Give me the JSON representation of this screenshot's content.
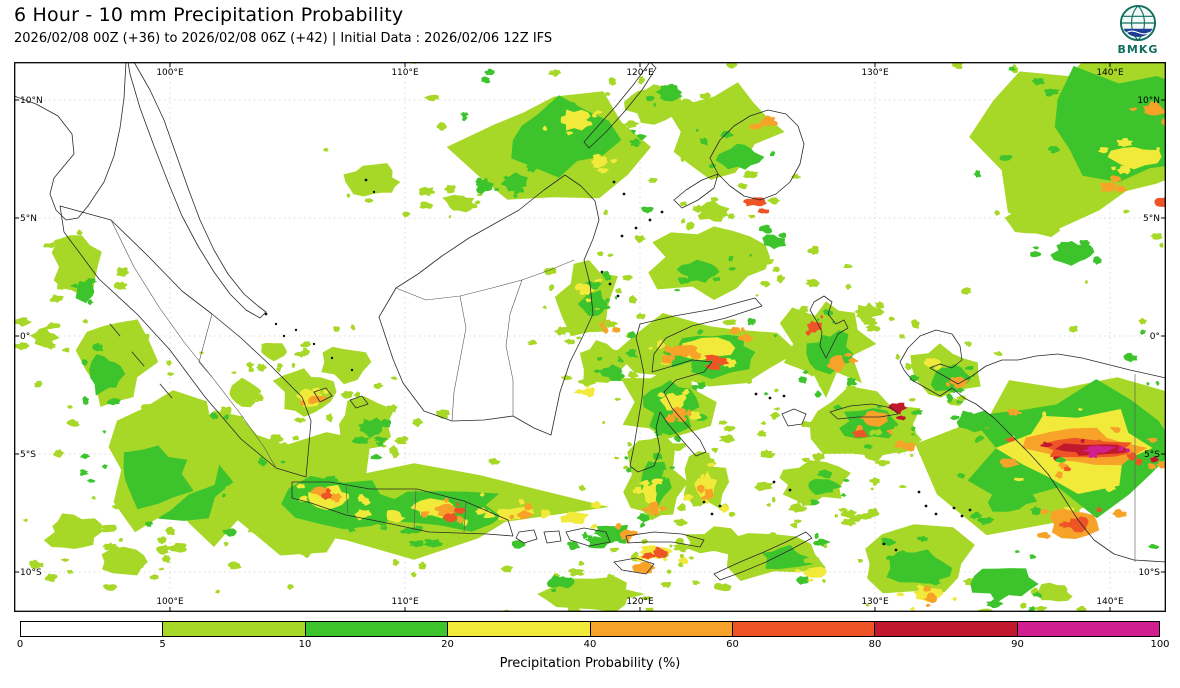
{
  "header": {
    "title": "6 Hour - 10 mm Precipitation Probability",
    "subtitle": "2026/02/08 00Z (+36) to 2026/02/08 06Z (+42) | Initial Data : 2026/02/06 12Z IFS",
    "logo_text": "BMKG"
  },
  "colors": {
    "logo_green": "#0f6e5e",
    "logo_blue": "#1c3e94"
  },
  "map": {
    "lon_labels": [
      "100°E",
      "110°E",
      "120°E",
      "130°E",
      "140°E"
    ],
    "lat_labels": [
      "10°N",
      "5°N",
      "0°",
      "5°S",
      "10°S"
    ],
    "lon_x": [
      156,
      391,
      626,
      861,
      1096
    ],
    "lat_y": [
      38,
      156,
      274,
      392,
      510
    ]
  },
  "colorbar": {
    "title": "Precipitation Probability (%)",
    "ticks": [
      "0",
      "5",
      "10",
      "20",
      "40",
      "60",
      "80",
      "90",
      "100"
    ],
    "segment_colors": [
      "#ffffff",
      "#a8d827",
      "#3dc42d",
      "#f2ea3a",
      "#f7a32a",
      "#ee5426",
      "#c2182e",
      "#d11f8f"
    ]
  },
  "palette": {
    "L1": "#a8d827",
    "L2": "#3dc42d",
    "L3": "#f2ea3a",
    "L4": "#f7a32a",
    "L5": "#ee5426",
    "L6": "#c2182e",
    "L7": "#d11f8f"
  },
  "precip_regions": {
    "fields": [
      "cx",
      "cy",
      "rx",
      "ry",
      "level",
      "specks"
    ],
    "rows": [
      [
        540,
        85,
        95,
        62,
        1,
        20
      ],
      [
        545,
        78,
        60,
        40,
        2,
        12
      ],
      [
        560,
        58,
        18,
        10,
        3,
        5
      ],
      [
        500,
        120,
        14,
        9,
        2,
        4
      ],
      [
        585,
        100,
        10,
        6,
        3,
        3
      ],
      [
        445,
        140,
        16,
        10,
        1,
        5
      ],
      [
        470,
        125,
        10,
        7,
        2,
        3
      ],
      [
        360,
        120,
        30,
        18,
        1,
        8
      ],
      [
        640,
        40,
        30,
        20,
        1,
        8
      ],
      [
        655,
        30,
        14,
        9,
        2,
        4
      ],
      [
        710,
        70,
        55,
        45,
        1,
        14
      ],
      [
        725,
        95,
        24,
        16,
        2,
        6
      ],
      [
        755,
        60,
        9,
        6,
        4,
        2
      ],
      [
        738,
        140,
        8,
        5,
        5,
        2
      ],
      [
        700,
        150,
        18,
        10,
        1,
        5
      ],
      [
        1085,
        75,
        115,
        95,
        1,
        22
      ],
      [
        1105,
        65,
        80,
        62,
        2,
        14
      ],
      [
        1120,
        95,
        26,
        12,
        3,
        6
      ],
      [
        1140,
        48,
        12,
        8,
        4,
        3
      ],
      [
        1095,
        125,
        10,
        6,
        4,
        3
      ],
      [
        1148,
        140,
        8,
        6,
        5,
        2
      ],
      [
        1020,
        160,
        30,
        18,
        1,
        8
      ],
      [
        1060,
        190,
        22,
        12,
        2,
        5
      ],
      [
        700,
        195,
        70,
        40,
        1,
        14
      ],
      [
        685,
        210,
        22,
        12,
        2,
        5
      ],
      [
        760,
        180,
        14,
        8,
        2,
        4
      ],
      [
        575,
        235,
        32,
        40,
        1,
        12
      ],
      [
        580,
        242,
        15,
        18,
        2,
        6
      ],
      [
        572,
        228,
        8,
        6,
        3,
        3
      ],
      [
        592,
        262,
        6,
        5,
        4,
        2
      ],
      [
        588,
        300,
        26,
        22,
        1,
        8
      ],
      [
        598,
        310,
        11,
        8,
        2,
        4
      ],
      [
        575,
        330,
        8,
        5,
        3,
        2
      ],
      [
        695,
        290,
        82,
        40,
        1,
        16
      ],
      [
        698,
        290,
        52,
        24,
        2,
        9
      ],
      [
        688,
        286,
        30,
        12,
        3,
        6
      ],
      [
        670,
        289,
        14,
        7,
        4,
        4
      ],
      [
        706,
        299,
        10,
        5,
        5,
        3
      ],
      [
        732,
        276,
        8,
        5,
        4,
        2
      ],
      [
        652,
        340,
        46,
        42,
        1,
        10
      ],
      [
        656,
        345,
        27,
        25,
        2,
        6
      ],
      [
        660,
        340,
        14,
        10,
        3,
        4
      ],
      [
        665,
        350,
        8,
        6,
        4,
        3
      ],
      [
        640,
        420,
        30,
        46,
        1,
        10
      ],
      [
        640,
        426,
        16,
        28,
        2,
        6
      ],
      [
        637,
        432,
        9,
        14,
        3,
        4
      ],
      [
        640,
        447,
        6,
        8,
        4,
        2
      ],
      [
        690,
        420,
        22,
        30,
        1,
        8
      ],
      [
        692,
        426,
        11,
        15,
        3,
        4
      ],
      [
        695,
        432,
        6,
        7,
        4,
        2
      ],
      [
        812,
        282,
        46,
        50,
        1,
        12
      ],
      [
        816,
        292,
        23,
        25,
        2,
        6
      ],
      [
        822,
        302,
        10,
        8,
        4,
        3
      ],
      [
        800,
        264,
        8,
        6,
        5,
        2
      ],
      [
        855,
        250,
        14,
        9,
        1,
        5
      ],
      [
        850,
        362,
        62,
        36,
        1,
        14
      ],
      [
        856,
        362,
        32,
        17,
        2,
        7
      ],
      [
        862,
        356,
        14,
        8,
        4,
        4
      ],
      [
        846,
        372,
        8,
        5,
        5,
        2
      ],
      [
        884,
        346,
        9,
        6,
        6,
        2
      ],
      [
        800,
        420,
        40,
        22,
        1,
        10
      ],
      [
        810,
        425,
        16,
        9,
        2,
        4
      ],
      [
        930,
        312,
        42,
        32,
        1,
        10
      ],
      [
        936,
        316,
        21,
        15,
        2,
        5
      ],
      [
        946,
        321,
        10,
        6,
        4,
        3
      ],
      [
        918,
        300,
        8,
        5,
        3,
        3
      ],
      [
        890,
        380,
        18,
        12,
        1,
        5
      ],
      [
        895,
        384,
        8,
        5,
        4,
        2
      ],
      [
        1048,
        382,
        132,
        92,
        1,
        22
      ],
      [
        1058,
        386,
        102,
        66,
        2,
        14
      ],
      [
        1064,
        386,
        76,
        40,
        3,
        10
      ],
      [
        1070,
        386,
        60,
        22,
        4,
        9
      ],
      [
        1076,
        386,
        48,
        12,
        5,
        7
      ],
      [
        1080,
        387,
        38,
        7,
        6,
        5
      ],
      [
        1086,
        387,
        18,
        4,
        7,
        3
      ],
      [
        1000,
        432,
        30,
        20,
        2,
        6
      ],
      [
        1058,
        460,
        28,
        16,
        4,
        5
      ],
      [
        1064,
        462,
        14,
        8,
        5,
        3
      ],
      [
        960,
        360,
        20,
        12,
        2,
        5
      ],
      [
        400,
        445,
        170,
        48,
        1,
        26
      ],
      [
        290,
        430,
        95,
        58,
        1,
        16
      ],
      [
        200,
        410,
        80,
        70,
        1,
        15
      ],
      [
        170,
        420,
        45,
        38,
        2,
        9
      ],
      [
        330,
        442,
        62,
        30,
        2,
        10
      ],
      [
        432,
        448,
        72,
        20,
        2,
        9
      ],
      [
        318,
        436,
        24,
        12,
        3,
        6
      ],
      [
        308,
        430,
        10,
        6,
        4,
        3
      ],
      [
        314,
        433,
        5,
        4,
        5,
        2
      ],
      [
        422,
        446,
        26,
        10,
        3,
        5
      ],
      [
        432,
        448,
        12,
        6,
        4,
        3
      ],
      [
        446,
        449,
        6,
        4,
        5,
        2
      ],
      [
        500,
        452,
        20,
        8,
        3,
        4
      ],
      [
        510,
        453,
        8,
        5,
        4,
        2
      ],
      [
        560,
        456,
        16,
        7,
        3,
        3
      ],
      [
        600,
        470,
        20,
        9,
        2,
        4
      ],
      [
        614,
        472,
        10,
        5,
        4,
        3
      ],
      [
        640,
        490,
        18,
        8,
        3,
        3
      ],
      [
        646,
        492,
        8,
        5,
        5,
        2
      ],
      [
        630,
        506,
        11,
        6,
        4,
        2
      ],
      [
        585,
        480,
        14,
        7,
        2,
        3
      ],
      [
        700,
        480,
        30,
        14,
        1,
        8
      ],
      [
        760,
        492,
        60,
        28,
        1,
        13
      ],
      [
        770,
        496,
        28,
        13,
        2,
        6
      ],
      [
        800,
        510,
        12,
        7,
        3,
        3
      ],
      [
        900,
        502,
        70,
        38,
        1,
        14
      ],
      [
        906,
        506,
        35,
        20,
        2,
        7
      ],
      [
        912,
        532,
        16,
        9,
        3,
        4
      ],
      [
        918,
        536,
        8,
        5,
        4,
        2
      ],
      [
        990,
        522,
        32,
        18,
        2,
        5
      ],
      [
        1040,
        530,
        20,
        10,
        1,
        5
      ],
      [
        580,
        532,
        52,
        18,
        1,
        12
      ],
      [
        545,
        520,
        14,
        7,
        2,
        3
      ],
      [
        150,
        398,
        72,
        68,
        1,
        14
      ],
      [
        140,
        412,
        42,
        34,
        2,
        8
      ],
      [
        100,
        300,
        40,
        50,
        1,
        10
      ],
      [
        92,
        312,
        18,
        22,
        2,
        5
      ],
      [
        62,
        205,
        26,
        32,
        1,
        8
      ],
      [
        72,
        230,
        12,
        12,
        2,
        4
      ],
      [
        290,
        330,
        30,
        26,
        1,
        8
      ],
      [
        296,
        336,
        12,
        9,
        3,
        4
      ],
      [
        299,
        338,
        6,
        4,
        4,
        2
      ],
      [
        350,
        362,
        32,
        26,
        1,
        8
      ],
      [
        356,
        366,
        15,
        10,
        2,
        4
      ],
      [
        230,
        330,
        20,
        15,
        1,
        6
      ],
      [
        260,
        290,
        16,
        10,
        1,
        5
      ],
      [
        330,
        300,
        26,
        20,
        1,
        7
      ],
      [
        60,
        470,
        30,
        20,
        1,
        8
      ],
      [
        110,
        500,
        24,
        14,
        1,
        6
      ],
      [
        30,
        276,
        14,
        10,
        1,
        4
      ]
    ]
  }
}
